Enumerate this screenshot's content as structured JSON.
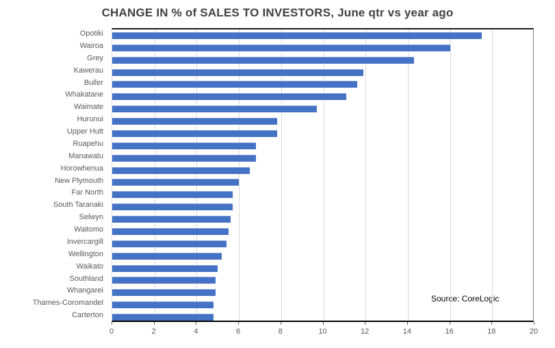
{
  "title": "CHANGE IN % of SALES TO INVESTORS, June qtr vs year ago",
  "source_note": "Source: CoreLogic",
  "colors": {
    "bar": "#4472c4",
    "gridline": "#d9d9d9",
    "title_text": "#404040",
    "axis_text": "#595959",
    "axis_line": "#000000",
    "plot_border_right": "#808080"
  },
  "chart_data": {
    "type": "bar",
    "orientation": "horizontal",
    "title": "CHANGE IN % of SALES TO INVESTORS, June qtr vs year ago",
    "xlabel": "",
    "ylabel": "",
    "xlim": [
      0,
      20
    ],
    "x_ticks": [
      0,
      2,
      4,
      6,
      8,
      10,
      12,
      14,
      16,
      18,
      20
    ],
    "grid": true,
    "legend": false,
    "annotation": "Source: CoreLogic",
    "categories": [
      "Opotiki",
      "Wairoa",
      "Grey",
      "Kawerau",
      "Buller",
      "Whakatane",
      "Waimate",
      "Hurunui",
      "Upper Hutt",
      "Ruapehu",
      "Manawatu",
      "Horowhenua",
      "New Plymouth",
      "Far North",
      "South Taranaki",
      "Selwyn",
      "Waitomo",
      "Invercargill",
      "Wellington",
      "Waikato",
      "Southland",
      "Whangarei",
      "Thames-Coromandel",
      "Carterton"
    ],
    "values": [
      17.5,
      16.0,
      14.3,
      11.9,
      11.6,
      11.1,
      9.7,
      7.8,
      7.8,
      6.8,
      6.8,
      6.5,
      6.0,
      5.7,
      5.7,
      5.6,
      5.5,
      5.4,
      5.2,
      5.0,
      4.9,
      4.9,
      4.8,
      4.8
    ]
  }
}
